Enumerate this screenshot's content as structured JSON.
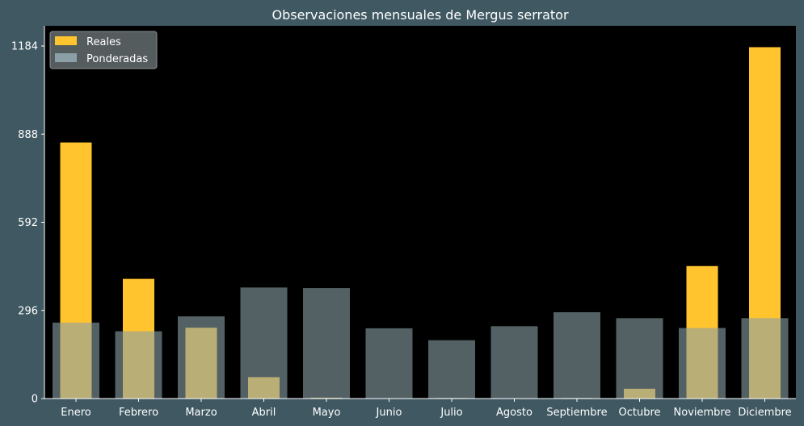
{
  "chart_data": {
    "type": "bar",
    "title": "Observaciones mensuales de Mergus serrator",
    "xlabel": "",
    "ylabel": "",
    "categories": [
      "Enero",
      "Febrero",
      "Marzo",
      "Abril",
      "Mayo",
      "Junio",
      "Julio",
      "Agosto",
      "Septiembre",
      "Octubre",
      "Noviembre",
      "Diciembre"
    ],
    "series": [
      {
        "name": "Reales",
        "color": "#ffc42e",
        "values": [
          860,
          402,
          238,
          72,
          3,
          0,
          2,
          0,
          2,
          33,
          445,
          1180
        ]
      },
      {
        "name": "Ponderadas",
        "color": "#8aa0a6",
        "values": [
          255,
          226,
          276,
          373,
          371,
          236,
          196,
          243,
          290,
          270,
          237,
          270
        ]
      }
    ],
    "yticks": [
      0,
      296,
      592,
      888,
      1184
    ],
    "ylim": [
      0,
      1184
    ],
    "grid": false,
    "legend_position": "top-left",
    "background": "#3f5862",
    "plot_background": "#000000"
  }
}
